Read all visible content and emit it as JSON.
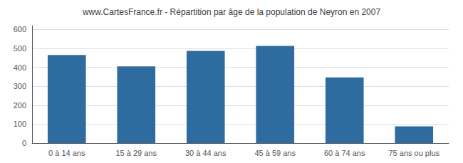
{
  "chart_data": {
    "type": "bar",
    "title": "www.CartesFrance.fr - Répartition par âge de la population de Neyron en 2007",
    "categories": [
      "0 à 14 ans",
      "15 à 29 ans",
      "30 à 44 ans",
      "45 à 59 ans",
      "60 à 74 ans",
      "75 ans ou plus"
    ],
    "values": [
      465,
      405,
      487,
      513,
      347,
      88
    ],
    "color": "#2e6b9e",
    "ylim": [
      0,
      620
    ],
    "yticks": [
      0,
      100,
      200,
      300,
      400,
      500,
      600
    ],
    "grid": true
  }
}
